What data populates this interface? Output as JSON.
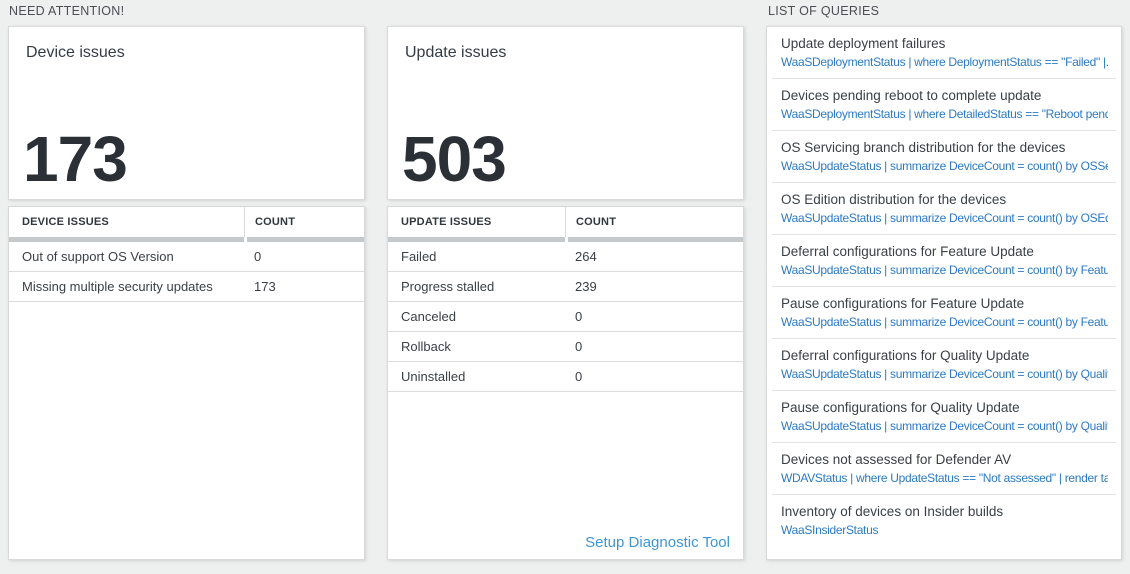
{
  "sections": {
    "need_attention": {
      "label": "NEED ATTENTION!"
    },
    "list_of_queries": {
      "label": "LIST OF QUERIES"
    }
  },
  "device_card": {
    "title": "Device issues",
    "count": "173"
  },
  "device_table": {
    "headers": {
      "issues": "DEVICE ISSUES",
      "count": "COUNT"
    },
    "rows": [
      {
        "label": "Out of support OS Version",
        "count": "0"
      },
      {
        "label": "Missing multiple security updates",
        "count": "173"
      }
    ]
  },
  "update_card": {
    "title": "Update issues",
    "count": "503"
  },
  "update_table": {
    "headers": {
      "issues": "UPDATE ISSUES",
      "count": "COUNT"
    },
    "rows": [
      {
        "label": "Failed",
        "count": "264"
      },
      {
        "label": "Progress stalled",
        "count": "239"
      },
      {
        "label": "Canceled",
        "count": "0"
      },
      {
        "label": "Rollback",
        "count": "0"
      },
      {
        "label": "Uninstalled",
        "count": "0"
      }
    ],
    "footer_link": "Setup Diagnostic Tool"
  },
  "queries": {
    "items": [
      {
        "title": "Update deployment failures",
        "query": "WaaSDeploymentStatus | where DeploymentStatus == \"Failed\" |..."
      },
      {
        "title": "Devices pending reboot to complete update",
        "query": "WaaSDeploymentStatus | where DetailedStatus == \"Reboot pend..."
      },
      {
        "title": "OS Servicing branch distribution for the devices",
        "query": "WaaSUpdateStatus | summarize DeviceCount = count() by OSSer..."
      },
      {
        "title": "OS Edition distribution for the devices",
        "query": "WaaSUpdateStatus | summarize DeviceCount = count() by OSEdit..."
      },
      {
        "title": "Deferral configurations for Feature Update",
        "query": "WaaSUpdateStatus | summarize DeviceCount = count() by Featur..."
      },
      {
        "title": "Pause configurations for Feature Update",
        "query": "WaaSUpdateStatus | summarize DeviceCount = count() by Featur..."
      },
      {
        "title": "Deferral configurations for Quality Update",
        "query": "WaaSUpdateStatus | summarize DeviceCount = count() by Qualit..."
      },
      {
        "title": "Pause configurations for Quality Update",
        "query": "WaaSUpdateStatus | summarize DeviceCount = count() by Qualit..."
      },
      {
        "title": "Devices not assessed for Defender AV",
        "query": "WDAVStatus | where UpdateStatus == \"Not assessed\" | render ta..."
      },
      {
        "title": "Inventory of devices on Insider builds",
        "query": "WaaSInsiderStatus"
      }
    ]
  },
  "colors": {
    "query-link": "#2b7ac4",
    "action-link": "#3e96d6",
    "big-number": "#2a3036",
    "header-bar": "#c5c9cb"
  }
}
